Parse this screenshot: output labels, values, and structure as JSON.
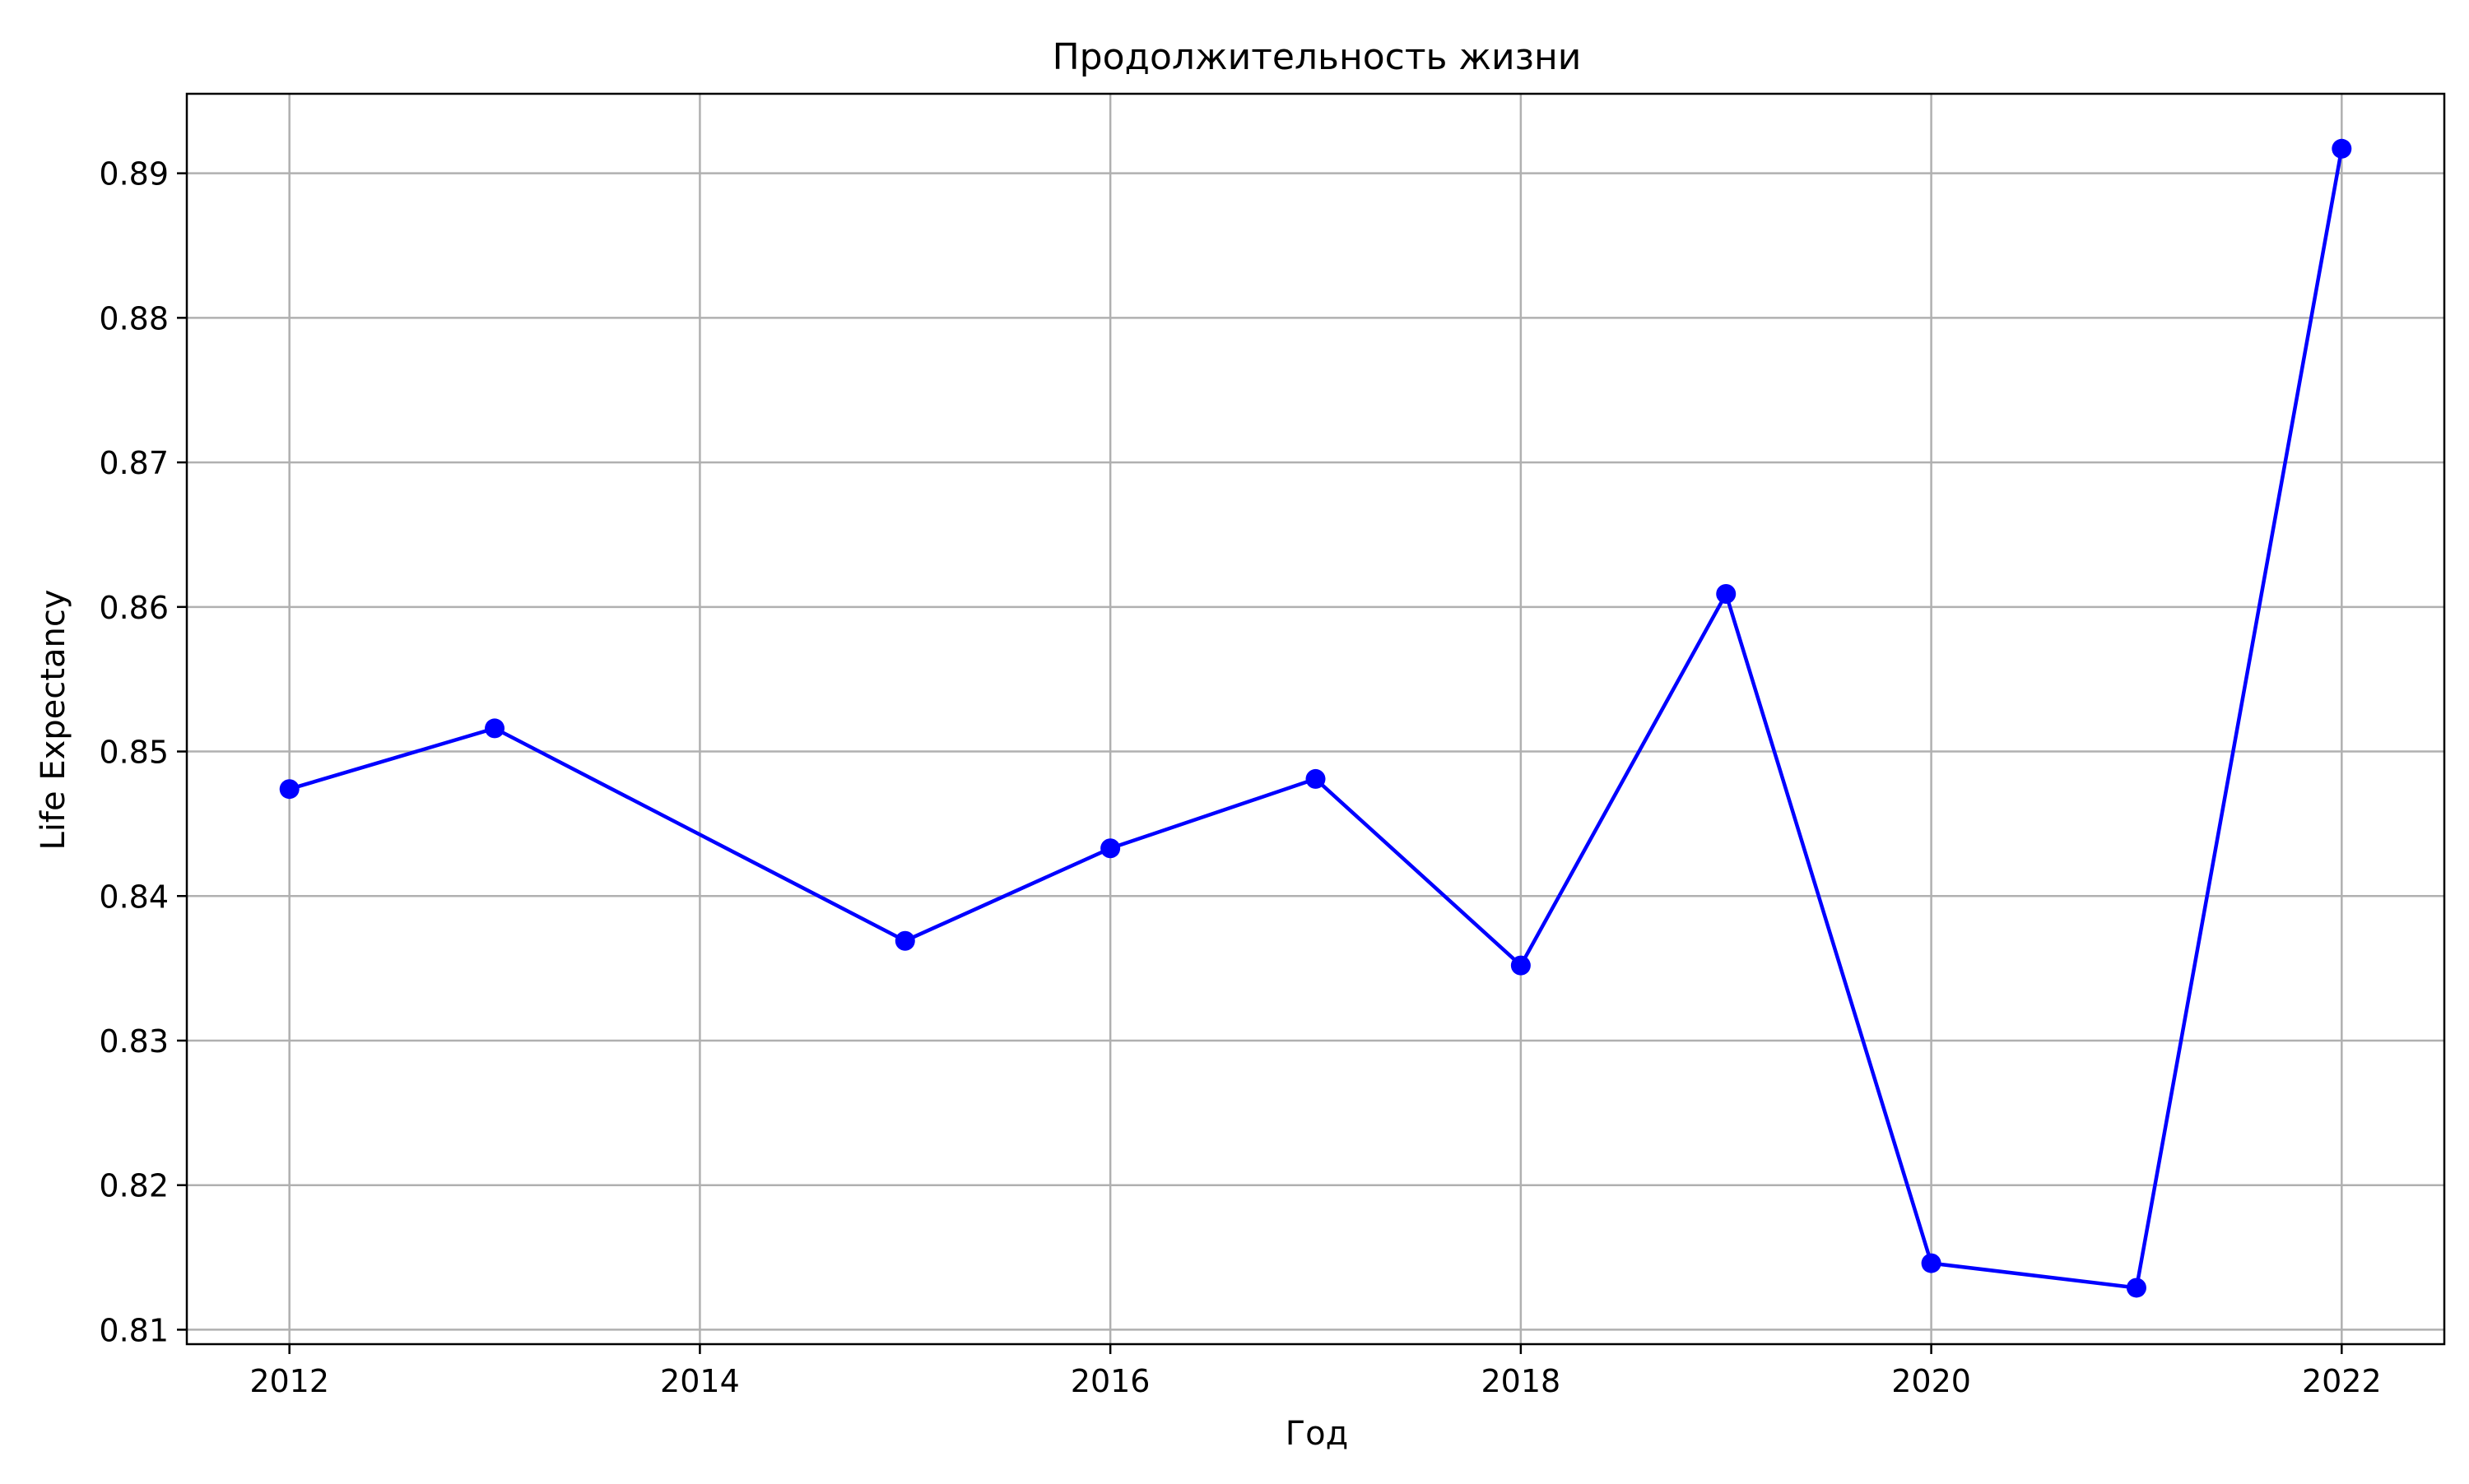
{
  "chart_data": {
    "type": "line",
    "title": "Продолжительность жизни",
    "xlabel": "Год",
    "ylabel": "Life Expectancy",
    "x": [
      2012,
      2013,
      2015,
      2016,
      2017,
      2018,
      2019,
      2020,
      2021,
      2022
    ],
    "series": [
      {
        "values": [
          0.8474,
          0.8516,
          0.8369,
          0.8433,
          0.8481,
          0.8352,
          0.8609,
          0.8146,
          0.8129,
          0.8917
        ],
        "color": "#0000ff",
        "marker": "circle"
      }
    ],
    "xlim": [
      2011.5,
      2022.5
    ],
    "ylim": [
      0.809,
      0.8955
    ],
    "xticks": [
      2012,
      2014,
      2016,
      2018,
      2020,
      2022
    ],
    "yticks": [
      0.81,
      0.82,
      0.83,
      0.84,
      0.85,
      0.86,
      0.87,
      0.88,
      0.89
    ],
    "grid": true,
    "legend": false
  }
}
